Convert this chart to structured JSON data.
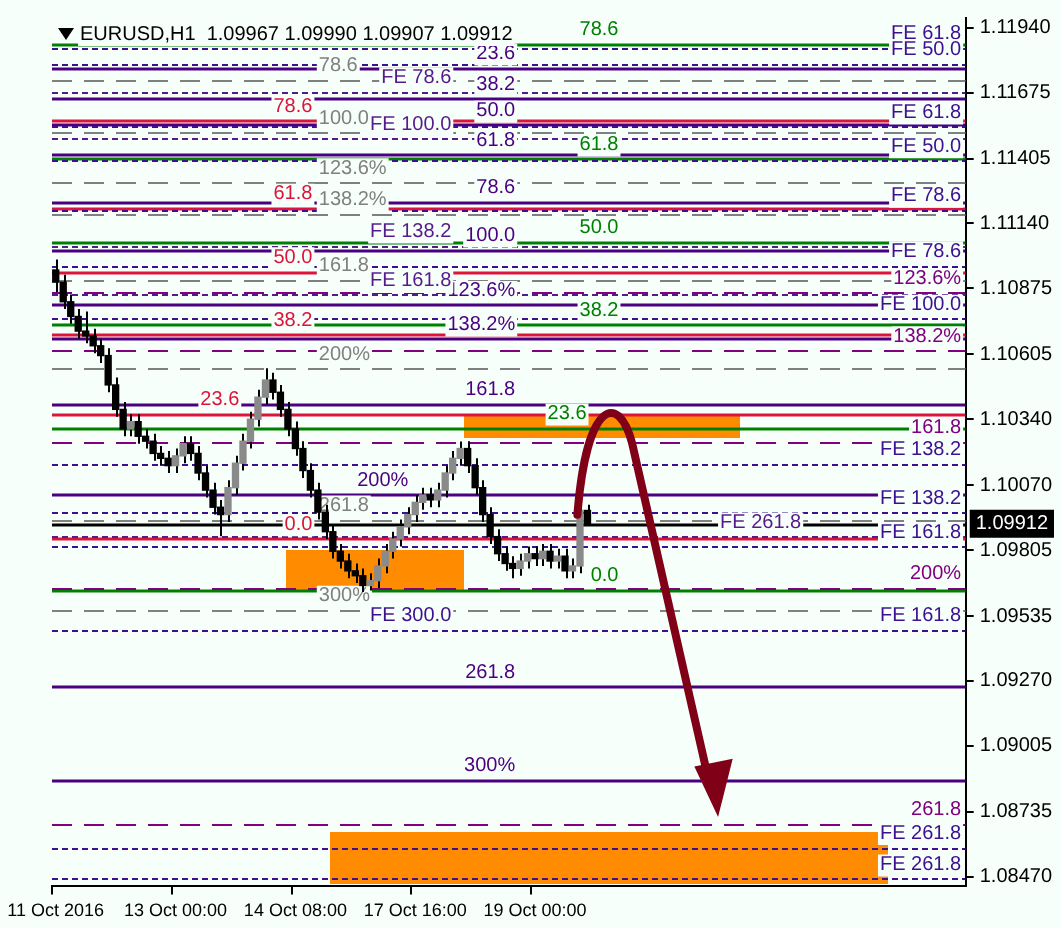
{
  "chart_data": {
    "type": "candlestick",
    "title": "EURUSD,H1  1.09967 1.09990 1.09907 1.09912",
    "categories": [
      "11 Oct 2016",
      null,
      null,
      null,
      null,
      null,
      null,
      null,
      null,
      null,
      null,
      null,
      null,
      null,
      null,
      null,
      "13 Oct 00:00",
      null,
      null,
      null,
      null,
      null,
      null,
      null,
      null,
      null,
      null,
      null,
      null,
      null,
      null,
      null,
      "14 Oct 08:00",
      null,
      null,
      null,
      null,
      null,
      null,
      null,
      null,
      null,
      null,
      null,
      null,
      null,
      null,
      null,
      "17 Oct 16:00",
      null,
      null,
      null,
      null,
      null,
      null,
      null,
      null,
      null,
      null,
      null,
      null,
      null,
      null,
      null,
      "19 Oct 00:00",
      null,
      null,
      null,
      null,
      null,
      null,
      null,
      null,
      null,
      null,
      null,
      null,
      null,
      null,
      null,
      null,
      null,
      null,
      null,
      null,
      null,
      null,
      null,
      null,
      null,
      null,
      null,
      null,
      null,
      null,
      null,
      null,
      null,
      null,
      null,
      null,
      null,
      null,
      null,
      null,
      null,
      null,
      null,
      null,
      null,
      null,
      null,
      null,
      null,
      null,
      null,
      null,
      null,
      null,
      null,
      null,
      null
    ],
    "ohlc": [
      [
        1.1095,
        1.10993,
        1.1086,
        1.109
      ],
      [
        1.109,
        1.1093,
        1.1079,
        1.1082
      ],
      [
        1.1082,
        1.1085,
        1.1073,
        1.1076
      ],
      [
        1.1076,
        1.1079,
        1.1067,
        1.107
      ],
      [
        1.107,
        1.1078,
        1.1065,
        1.1068
      ],
      [
        1.1068,
        1.1071,
        1.1061,
        1.1064
      ],
      [
        1.1064,
        1.1067,
        1.1057,
        1.106
      ],
      [
        1.106,
        1.1063,
        1.1045,
        1.1048
      ],
      [
        1.1048,
        1.1051,
        1.1035,
        1.1038
      ],
      [
        1.1038,
        1.1041,
        1.1027,
        1.103
      ],
      [
        1.103,
        1.1036,
        1.1027,
        1.1033
      ],
      [
        1.1033,
        1.1036,
        1.1024,
        1.1027
      ],
      [
        1.1027,
        1.103,
        1.1022,
        1.1025
      ],
      [
        1.1025,
        1.1028,
        1.1017,
        1.102
      ],
      [
        1.102,
        1.1023,
        1.1015,
        1.1018
      ],
      [
        1.1018,
        1.1021,
        1.1012,
        1.1015
      ],
      [
        1.1015,
        1.1022,
        1.1012,
        1.1019
      ],
      [
        1.1019,
        1.1027,
        1.1016,
        1.1024
      ],
      [
        1.1024,
        1.1027,
        1.1017,
        1.102
      ],
      [
        1.102,
        1.1023,
        1.1009,
        1.1012
      ],
      [
        1.1012,
        1.1015,
        1.1002,
        1.1005
      ],
      [
        1.1005,
        1.1008,
        1.0995,
        1.0998
      ],
      [
        1.0998,
        1.1001,
        1.09861,
        1.0995
      ],
      [
        1.0995,
        1.1009,
        1.0992,
        1.1006
      ],
      [
        1.1006,
        1.1019,
        1.1003,
        1.1016
      ],
      [
        1.1016,
        1.1028,
        1.1013,
        1.1025
      ],
      [
        1.1025,
        1.1037,
        1.1022,
        1.1034
      ],
      [
        1.1034,
        1.1046,
        1.1031,
        1.1043
      ],
      [
        1.1043,
        1.10548,
        1.104,
        1.105
      ],
      [
        1.105,
        1.1053,
        1.1042,
        1.1045
      ],
      [
        1.1045,
        1.1048,
        1.1035,
        1.1038
      ],
      [
        1.1038,
        1.1041,
        1.1027,
        1.103
      ],
      [
        1.103,
        1.1033,
        1.1019,
        1.1022
      ],
      [
        1.1022,
        1.1025,
        1.101,
        1.1013
      ],
      [
        1.1013,
        1.1016,
        1.1002,
        1.1005
      ],
      [
        1.1005,
        1.1008,
        1.0993,
        1.0996
      ],
      [
        1.0996,
        1.0999,
        1.0985,
        1.0988
      ],
      [
        1.0988,
        1.0991,
        1.0977,
        1.098
      ],
      [
        1.098,
        1.0983,
        1.0973,
        1.0976
      ],
      [
        1.0976,
        1.0979,
        1.0969,
        1.0972
      ],
      [
        1.0972,
        1.0975,
        1.0967,
        1.097
      ],
      [
        1.097,
        1.0973,
        1.09634,
        1.0966
      ],
      [
        1.0966,
        1.0971,
        1.0964,
        1.0968
      ],
      [
        1.0968,
        1.0977,
        1.0965,
        1.0974
      ],
      [
        1.0974,
        1.0983,
        1.0971,
        1.098
      ],
      [
        1.098,
        1.0988,
        1.0977,
        1.0985
      ],
      [
        1.0985,
        1.0993,
        1.0982,
        1.099
      ],
      [
        1.099,
        1.0998,
        1.0987,
        1.0995
      ],
      [
        1.0995,
        1.1003,
        1.0992,
        1.1
      ],
      [
        1.1,
        1.1006,
        1.0997,
        1.1003
      ],
      [
        1.1003,
        1.1006,
        1.0998,
        1.1001
      ],
      [
        1.1001,
        1.1008,
        1.0998,
        1.1005
      ],
      [
        1.1005,
        1.1015,
        1.1002,
        1.1012
      ],
      [
        1.1012,
        1.1021,
        1.1009,
        1.1018
      ],
      [
        1.1018,
        1.10249,
        1.1015,
        1.1022
      ],
      [
        1.1022,
        1.1025,
        1.1012,
        1.1015
      ],
      [
        1.1015,
        1.1018,
        1.1003,
        1.1006
      ],
      [
        1.1006,
        1.1009,
        1.0992,
        1.0995
      ],
      [
        1.0995,
        1.0998,
        1.0983,
        1.0986
      ],
      [
        1.0986,
        1.0989,
        1.0976,
        1.0979
      ],
      [
        1.0979,
        1.0982,
        1.0972,
        1.0975
      ],
      [
        1.0975,
        1.0978,
        1.0969,
        1.0973
      ],
      [
        1.0973,
        1.0979,
        1.097,
        1.0976
      ],
      [
        1.0976,
        1.0982,
        1.0973,
        1.0979
      ],
      [
        1.0979,
        1.0982,
        1.0974,
        1.0977
      ],
      [
        1.0977,
        1.0983,
        1.0974,
        1.098
      ],
      [
        1.098,
        1.0983,
        1.0973,
        1.0976
      ],
      [
        1.0976,
        1.0981,
        1.0973,
        1.0978
      ],
      [
        1.0978,
        1.0981,
        1.0969,
        1.0972
      ],
      [
        1.0972,
        1.0977,
        1.0969,
        1.0974
      ],
      [
        1.0974,
        1.0999,
        1.0971,
        1.09967
      ],
      [
        1.09967,
        1.0999,
        1.09907,
        1.09912
      ],
      null,
      null,
      null,
      null,
      null,
      null,
      null,
      null,
      null,
      null,
      null,
      null,
      null,
      null,
      null,
      null,
      null,
      null,
      null,
      null,
      null,
      null,
      null,
      null,
      null,
      null,
      null,
      null,
      null,
      null,
      null,
      null,
      null,
      null,
      null,
      null,
      null,
      null,
      null,
      null,
      null,
      null,
      null,
      null,
      null,
      null,
      null,
      null,
      null,
      null
    ],
    "ylim": [
      1.0843,
      1.1198
    ],
    "yticks": [
      {
        "value": 1.1194,
        "label": "1.11940"
      },
      {
        "value": 1.11675,
        "label": "1.11675"
      },
      {
        "value": 1.11405,
        "label": "1.11405"
      },
      {
        "value": 1.1114,
        "label": "1.11140"
      },
      {
        "value": 1.10875,
        "label": "1.10875"
      },
      {
        "value": 1.10605,
        "label": "1.10605"
      },
      {
        "value": 1.1034,
        "label": "1.10340"
      },
      {
        "value": 1.1007,
        "label": "1.10070"
      },
      {
        "value": 1.09805,
        "label": "1.09805"
      },
      {
        "value": 1.09535,
        "label": "1.09535"
      },
      {
        "value": 1.0927,
        "label": "1.09270"
      },
      {
        "value": 1.09005,
        "label": "1.09005"
      },
      {
        "value": 1.08735,
        "label": "1.08735"
      },
      {
        "value": 1.0847,
        "label": "1.08470"
      }
    ],
    "ref_lines": [
      {
        "axis": "y",
        "value": 1.11875,
        "color": "#008000",
        "line_style": "solid"
      },
      {
        "axis": "y",
        "value": 1.11406,
        "color": "#008000",
        "line_style": "solid"
      },
      {
        "axis": "y",
        "value": 1.11066,
        "color": "#008000",
        "line_style": "solid"
      },
      {
        "axis": "y",
        "value": 1.10727,
        "color": "#008000",
        "line_style": "solid"
      },
      {
        "axis": "y",
        "value": 1.10306,
        "color": "#008000",
        "line_style": "solid"
      },
      {
        "axis": "y",
        "value": 1.09642,
        "color": "#008000",
        "line_style": "solid"
      },
      {
        "axis": "y",
        "value": 1.1156,
        "color": "#dc143c",
        "line_style": "solid"
      },
      {
        "axis": "y",
        "value": 1.11204,
        "color": "#dc143c",
        "line_style": "solid"
      },
      {
        "axis": "y",
        "value": 1.10945,
        "color": "#dc143c",
        "line_style": "solid"
      },
      {
        "axis": "y",
        "value": 1.10686,
        "color": "#dc143c",
        "line_style": "solid"
      },
      {
        "axis": "y",
        "value": 1.10362,
        "color": "#dc143c",
        "line_style": "solid"
      },
      {
        "axis": "y",
        "value": 1.09853,
        "color": "#dc143c",
        "line_style": "solid"
      },
      {
        "axis": "y",
        "value": 1.11778,
        "color": "#4b0082",
        "line_style": "solid"
      },
      {
        "axis": "y",
        "value": 1.11649,
        "color": "#4b0082",
        "line_style": "solid"
      },
      {
        "axis": "y",
        "value": 1.11544,
        "color": "#4b0082",
        "line_style": "solid"
      },
      {
        "axis": "y",
        "value": 1.1142,
        "color": "#4b0082",
        "line_style": "solid"
      },
      {
        "axis": "y",
        "value": 1.11228,
        "color": "#4b0082",
        "line_style": "solid"
      },
      {
        "axis": "y",
        "value": 1.11034,
        "color": "#4b0082",
        "line_style": "solid"
      },
      {
        "axis": "y",
        "value": 1.10807,
        "color": "#4b0082",
        "line_style": "solid"
      },
      {
        "axis": "y",
        "value": 1.1067,
        "color": "#4b0082",
        "line_style": "solid"
      },
      {
        "axis": "y",
        "value": 1.10403,
        "color": "#4b0082",
        "line_style": "solid"
      },
      {
        "axis": "y",
        "value": 1.10031,
        "color": "#4b0082",
        "line_style": "solid"
      },
      {
        "axis": "y",
        "value": 1.09246,
        "color": "#4b0082",
        "line_style": "solid"
      },
      {
        "axis": "y",
        "value": 1.08866,
        "color": "#4b0082",
        "line_style": "solid"
      },
      {
        "axis": "y",
        "value": 1.1173,
        "color": "#808080",
        "line_style": "dashed"
      },
      {
        "axis": "y",
        "value": 1.11511,
        "color": "#808080",
        "line_style": "dashed"
      },
      {
        "axis": "y",
        "value": 1.11309,
        "color": "#808080",
        "line_style": "dashed"
      },
      {
        "axis": "y",
        "value": 1.11179,
        "color": "#808080",
        "line_style": "dashed"
      },
      {
        "axis": "y",
        "value": 1.10913,
        "color": "#808080",
        "line_style": "dashed"
      },
      {
        "axis": "y",
        "value": 1.10548,
        "color": "#808080",
        "line_style": "dashed"
      },
      {
        "axis": "y",
        "value": 1.0993,
        "color": "#808080",
        "line_style": "dashed"
      },
      {
        "axis": "y",
        "value": 1.09561,
        "color": "#808080",
        "line_style": "dashed"
      },
      {
        "axis": "y",
        "value": 1.1186,
        "color": "#3c1090",
        "line_style": "dotted"
      },
      {
        "axis": "y",
        "value": 1.11794,
        "color": "#3c1090",
        "line_style": "dotted"
      },
      {
        "axis": "y",
        "value": 1.11536,
        "color": "#3c1090",
        "line_style": "dotted"
      },
      {
        "axis": "y",
        "value": 1.11398,
        "color": "#3c1090",
        "line_style": "dotted"
      },
      {
        "axis": "y",
        "value": 1.11196,
        "color": "#3c1090",
        "line_style": "dotted"
      },
      {
        "axis": "y",
        "value": 1.10969,
        "color": "#3c1090",
        "line_style": "dotted"
      },
      {
        "axis": "y",
        "value": 1.10751,
        "color": "#3c1090",
        "line_style": "dotted"
      },
      {
        "axis": "y",
        "value": 1.1016,
        "color": "#3c1090",
        "line_style": "dotted"
      },
      {
        "axis": "y",
        "value": 1.09958,
        "color": "#3c1090",
        "line_style": "dotted"
      },
      {
        "axis": "y",
        "value": 1.0982,
        "color": "#3c1090",
        "line_style": "dotted"
      },
      {
        "axis": "y",
        "value": 1.0948,
        "color": "#3c1090",
        "line_style": "dotted"
      },
      {
        "axis": "y",
        "value": 1.08591,
        "color": "#3c1090",
        "line_style": "dotted"
      },
      {
        "axis": "y",
        "value": 1.08462,
        "color": "#3c1090",
        "line_style": "dotted"
      },
      {
        "axis": "y",
        "value": 1.10856,
        "color": "#800080",
        "line_style": "dashed"
      },
      {
        "axis": "y",
        "value": 1.10621,
        "color": "#800080",
        "line_style": "dashed"
      },
      {
        "axis": "y",
        "value": 1.10249,
        "color": "#800080",
        "line_style": "dashed"
      },
      {
        "axis": "y",
        "value": 1.0965,
        "color": "#800080",
        "line_style": "dashed"
      },
      {
        "axis": "y",
        "value": 1.08688,
        "color": "#800080",
        "line_style": "dashed"
      },
      {
        "axis": "y",
        "value": 1.11681,
        "color": "#551a8b",
        "line_style": "dotted"
      },
      {
        "axis": "y",
        "value": 1.11487,
        "color": "#551a8b",
        "line_style": "dotted"
      },
      {
        "axis": "y",
        "value": 1.1105,
        "color": "#551a8b",
        "line_style": "dotted"
      },
      {
        "axis": "y",
        "value": 1.10848,
        "color": "#551a8b",
        "line_style": "dotted"
      },
      {
        "axis": "y",
        "value": 1.0986,
        "color": "#551a8b",
        "line_style": "dotted"
      },
      {
        "axis": "y",
        "value": 1.09912,
        "label": "1.09912",
        "color": "#000000",
        "line_style": "solid"
      }
    ],
    "annotations": [
      {
        "text": "78.6",
        "y": 1.11875
      },
      {
        "text": "61.8",
        "y": 1.11406
      },
      {
        "text": "50.0",
        "y": 1.11066
      },
      {
        "text": "38.2",
        "y": 1.10727
      },
      {
        "text": "23.6",
        "y": 1.10306
      },
      {
        "text": "0.0",
        "y": 1.09642
      },
      {
        "text": "78.6",
        "y": 1.1156
      },
      {
        "text": "61.8",
        "y": 1.11204
      },
      {
        "text": "50.0",
        "y": 1.10945
      },
      {
        "text": "38.2",
        "y": 1.10686
      },
      {
        "text": "23.6",
        "y": 1.10362
      },
      {
        "text": "0.0",
        "y": 1.09853
      },
      {
        "text": "23.6",
        "y": 1.11778
      },
      {
        "text": "38.2",
        "y": 1.11649
      },
      {
        "text": "50.0",
        "y": 1.11544
      },
      {
        "text": "61.8",
        "y": 1.1142
      },
      {
        "text": "78.6",
        "y": 1.11228
      },
      {
        "text": "100.0",
        "y": 1.11034
      },
      {
        "text": "123.6%",
        "y": 1.10807
      },
      {
        "text": "138.2%",
        "y": 1.1067
      },
      {
        "text": "161.8",
        "y": 1.10403
      },
      {
        "text": "200%",
        "y": 1.10031
      },
      {
        "text": "261.8",
        "y": 1.09246
      },
      {
        "text": "300%",
        "y": 1.08866
      },
      {
        "text": "78.6",
        "y": 1.1173
      },
      {
        "text": "100.0",
        "y": 1.11511
      },
      {
        "text": "123.6%",
        "y": 1.11309
      },
      {
        "text": "138.2%",
        "y": 1.11179
      },
      {
        "text": "161.8",
        "y": 1.10913
      },
      {
        "text": "200%",
        "y": 1.10548
      },
      {
        "text": "261.8",
        "y": 1.0993
      },
      {
        "text": "300%",
        "y": 1.09561
      },
      {
        "text": "FE 61.8",
        "y": 1.1186
      },
      {
        "text": "FE 50.0",
        "y": 1.11794
      },
      {
        "text": "FE 61.8",
        "y": 1.11536
      },
      {
        "text": "FE 50.0",
        "y": 1.11398
      },
      {
        "text": "FE 78.6",
        "y": 1.11196
      },
      {
        "text": "FE 78.6",
        "y": 1.10969
      },
      {
        "text": "FE 100.0",
        "y": 1.10751
      },
      {
        "text": "FE 138.2",
        "y": 1.1016
      },
      {
        "text": "FE 138.2",
        "y": 1.09958
      },
      {
        "text": "FE 161.8",
        "y": 1.0982
      },
      {
        "text": "FE 161.8",
        "y": 1.0948
      },
      {
        "text": "FE 261.8",
        "y": 1.08591
      },
      {
        "text": "FE 261.8",
        "y": 1.08462
      },
      {
        "text": "123.6%",
        "y": 1.10856
      },
      {
        "text": "138.2%",
        "y": 1.10621
      },
      {
        "text": "161.8",
        "y": 1.10249
      },
      {
        "text": "200%",
        "y": 1.0965
      },
      {
        "text": "261.8",
        "y": 1.08688
      },
      {
        "text": "FE 78.6",
        "y": 1.11681
      },
      {
        "text": "FE 100.0",
        "y": 1.11487
      },
      {
        "text": "FE 138.2",
        "y": 1.1105
      },
      {
        "text": "FE 161.8",
        "y": 1.10848
      },
      {
        "text": "FE 261.8",
        "y": 1.0986
      },
      {
        "text": "FE 300.0",
        "y": 1.0948
      }
    ],
    "legend": false,
    "grid": false
  }
}
